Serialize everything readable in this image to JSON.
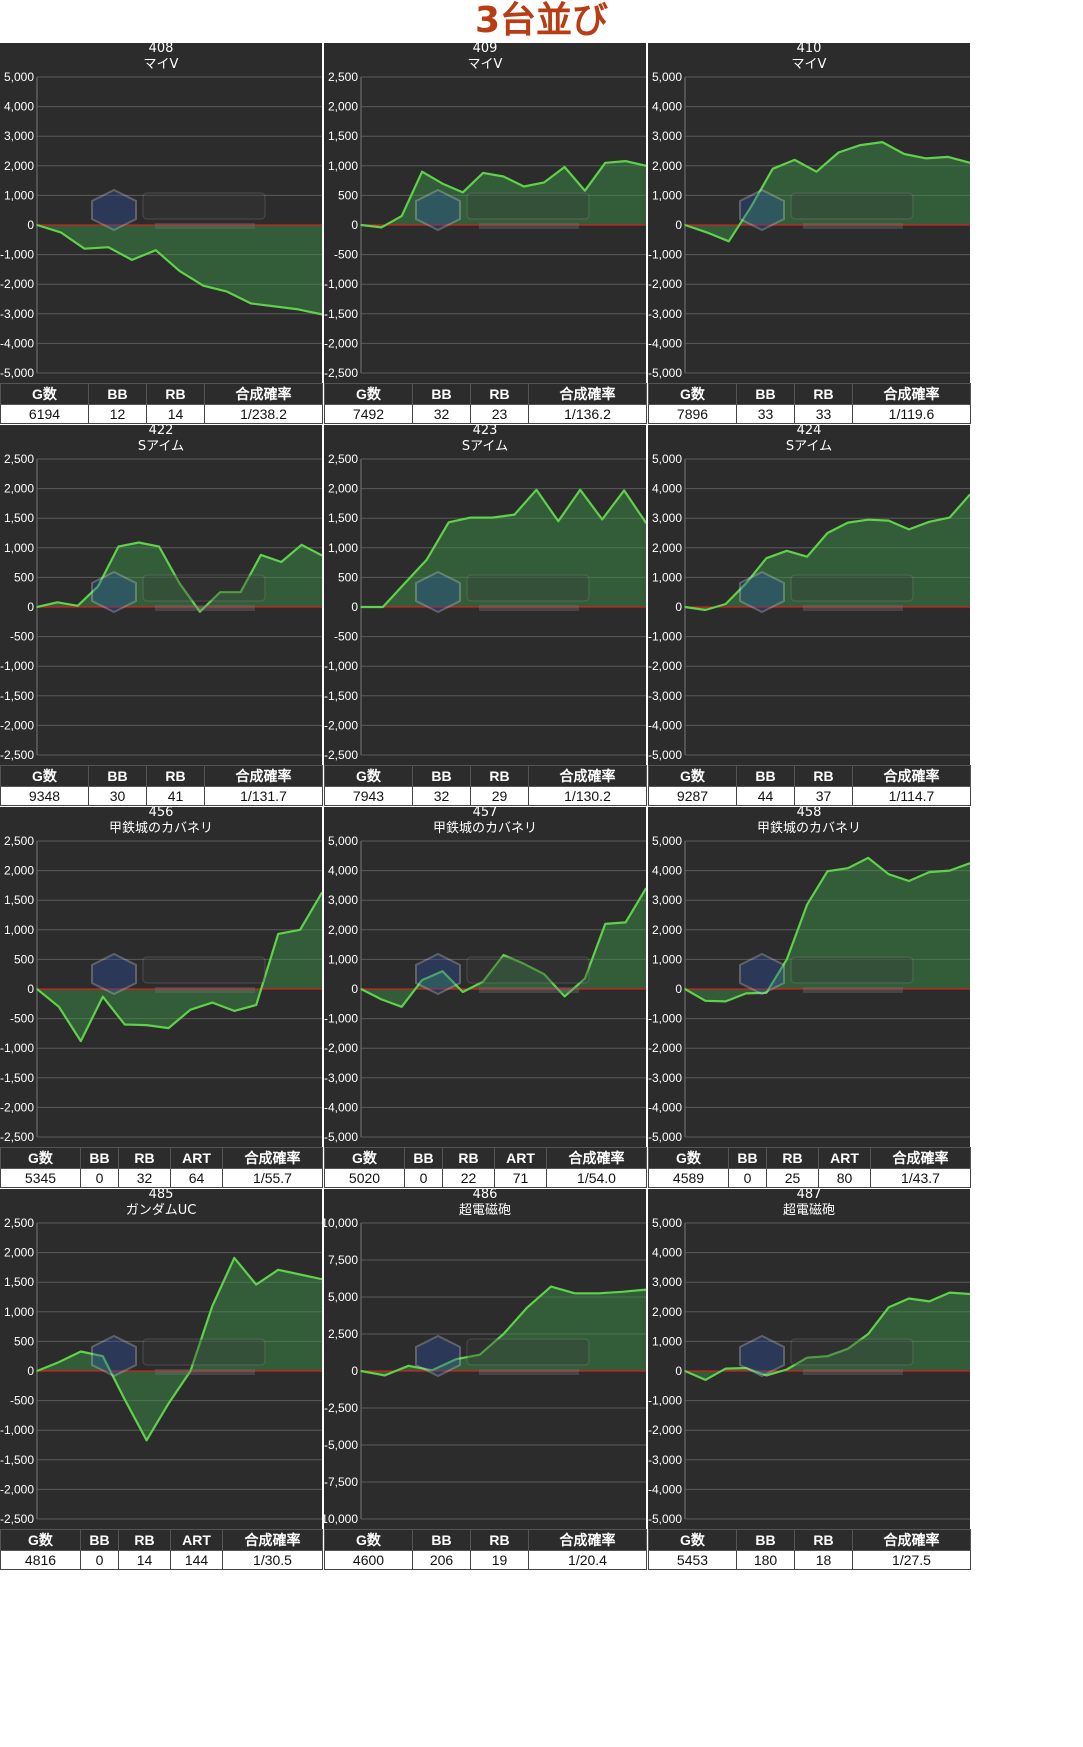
{
  "page": {
    "title": "3台並び"
  },
  "chart_data": [
    {
      "type": "line",
      "machine_no": "408",
      "model": "マイV",
      "ylim": [
        -5000,
        5000
      ],
      "yticks": [
        5000,
        4000,
        3000,
        2000,
        1000,
        0,
        -1000,
        -2000,
        -3000,
        -4000,
        -5000
      ],
      "ytick_labels": [
        "5,000",
        "4,000",
        "3,000",
        "2,000",
        "1,000",
        "0",
        "-1,000",
        "-2,000",
        "-3,000",
        "-4,000",
        "-5,000"
      ],
      "values": [
        0,
        -250,
        -800,
        -750,
        -1180,
        -850,
        -1550,
        -2050,
        -2250,
        -2650,
        -2750,
        -2850,
        -3020
      ],
      "stats": {
        "headers": [
          "G数",
          "BB",
          "RB",
          "合成確率"
        ],
        "values": [
          "6194",
          "12",
          "14",
          "1/238.2"
        ]
      }
    },
    {
      "type": "line",
      "machine_no": "409",
      "model": "マイV",
      "ylim": [
        -2500,
        2500
      ],
      "yticks": [
        2500,
        2000,
        1500,
        1000,
        500,
        0,
        -500,
        -1000,
        -1500,
        -2000,
        -2500
      ],
      "ytick_labels": [
        "2,500",
        "2,000",
        "1,500",
        "1,000",
        "500",
        "0",
        "-500",
        "-1,000",
        "-1,500",
        "-2,000",
        "-2,500"
      ],
      "values": [
        0,
        -40,
        150,
        900,
        700,
        550,
        880,
        820,
        650,
        720,
        980,
        580,
        1050,
        1080,
        1000
      ],
      "stats": {
        "headers": [
          "G数",
          "BB",
          "RB",
          "合成確率"
        ],
        "values": [
          "7492",
          "32",
          "23",
          "1/136.2"
        ]
      }
    },
    {
      "type": "line",
      "machine_no": "410",
      "model": "マイV",
      "ylim": [
        -5000,
        5000
      ],
      "yticks": [
        5000,
        4000,
        3000,
        2000,
        1000,
        0,
        -1000,
        -2000,
        -3000,
        -4000,
        -5000
      ],
      "ytick_labels": [
        "5,000",
        "4,000",
        "3,000",
        "2,000",
        "1,000",
        "0",
        "-1,000",
        "-2,000",
        "-3,000",
        "-4,000",
        "-5,000"
      ],
      "values": [
        0,
        -250,
        -550,
        600,
        1900,
        2200,
        1800,
        2450,
        2700,
        2800,
        2400,
        2250,
        2300,
        2100
      ],
      "stats": {
        "headers": [
          "G数",
          "BB",
          "RB",
          "合成確率"
        ],
        "values": [
          "7896",
          "33",
          "33",
          "1/119.6"
        ]
      }
    },
    {
      "type": "line",
      "machine_no": "422",
      "model": "Sアイム",
      "ylim": [
        -2500,
        2500
      ],
      "yticks": [
        2500,
        2000,
        1500,
        1000,
        500,
        0,
        -500,
        -1000,
        -1500,
        -2000,
        -2500
      ],
      "ytick_labels": [
        "2,500",
        "2,000",
        "1,500",
        "1,000",
        "500",
        "0",
        "-500",
        "-1,000",
        "-1,500",
        "-2,000",
        "-2,500"
      ],
      "values": [
        0,
        80,
        20,
        350,
        1020,
        1090,
        1020,
        400,
        -80,
        250,
        250,
        880,
        760,
        1050,
        870
      ],
      "stats": {
        "headers": [
          "G数",
          "BB",
          "RB",
          "合成確率"
        ],
        "values": [
          "9348",
          "30",
          "41",
          "1/131.7"
        ]
      }
    },
    {
      "type": "line",
      "machine_no": "423",
      "model": "Sアイム",
      "ylim": [
        -2500,
        2500
      ],
      "yticks": [
        2500,
        2000,
        1500,
        1000,
        500,
        0,
        -500,
        -1000,
        -1500,
        -2000,
        -2500
      ],
      "ytick_labels": [
        "2,500",
        "2,000",
        "1,500",
        "1,000",
        "500",
        "0",
        "-500",
        "-1,000",
        "-1,500",
        "-2,000",
        "-2,500"
      ],
      "values": [
        0,
        0,
        400,
        800,
        1430,
        1510,
        1510,
        1560,
        1980,
        1450,
        1980,
        1480,
        1970,
        1420
      ],
      "stats": {
        "headers": [
          "G数",
          "BB",
          "RB",
          "合成確率"
        ],
        "values": [
          "7943",
          "32",
          "29",
          "1/130.2"
        ]
      }
    },
    {
      "type": "line",
      "machine_no": "424",
      "model": "Sアイム",
      "ylim": [
        -5000,
        5000
      ],
      "yticks": [
        5000,
        4000,
        3000,
        2000,
        1000,
        0,
        -1000,
        -2000,
        -3000,
        -4000,
        -5000
      ],
      "ytick_labels": [
        "5,000",
        "4,000",
        "3,000",
        "2,000",
        "1,000",
        "0",
        "-1,000",
        "-2,000",
        "-3,000",
        "-4,000",
        "-5,000"
      ],
      "values": [
        0,
        -100,
        100,
        800,
        1650,
        1900,
        1700,
        2500,
        2850,
        2950,
        2920,
        2620,
        2880,
        3020,
        3800
      ],
      "stats": {
        "headers": [
          "G数",
          "BB",
          "RB",
          "合成確率"
        ],
        "values": [
          "9287",
          "44",
          "37",
          "1/114.7"
        ]
      }
    },
    {
      "type": "line",
      "machine_no": "456",
      "model": "甲鉄城のカバネリ",
      "ylim": [
        -2500,
        2500
      ],
      "yticks": [
        2500,
        2000,
        1500,
        1000,
        500,
        0,
        -500,
        -1000,
        -1500,
        -2000,
        -2500
      ],
      "ytick_labels": [
        "2,500",
        "2,000",
        "1,500",
        "1,000",
        "500",
        "0",
        "-500",
        "-1,000",
        "-1,500",
        "-2,000",
        "-2,500"
      ],
      "values": [
        0,
        -300,
        -880,
        -130,
        -600,
        -610,
        -660,
        -350,
        -230,
        -370,
        -270,
        930,
        1000,
        1630
      ],
      "stats": {
        "headers": [
          "G数",
          "BB",
          "RB",
          "ART",
          "合成確率"
        ],
        "values": [
          "5345",
          "0",
          "32",
          "64",
          "1/55.7"
        ]
      }
    },
    {
      "type": "line",
      "machine_no": "457",
      "model": "甲鉄城のカバネリ",
      "ylim": [
        -5000,
        5000
      ],
      "yticks": [
        5000,
        4000,
        3000,
        2000,
        1000,
        0,
        -1000,
        -2000,
        -3000,
        -4000,
        -5000
      ],
      "ytick_labels": [
        "5,000",
        "4,000",
        "3,000",
        "2,000",
        "1,000",
        "0",
        "-1,000",
        "-2,000",
        "-3,000",
        "-4,000",
        "-5,000"
      ],
      "values": [
        0,
        -350,
        -600,
        300,
        600,
        -100,
        250,
        1150,
        850,
        500,
        -250,
        350,
        2200,
        2250,
        3400
      ],
      "stats": {
        "headers": [
          "G数",
          "BB",
          "RB",
          "ART",
          "合成確率"
        ],
        "values": [
          "5020",
          "0",
          "22",
          "71",
          "1/54.0"
        ]
      }
    },
    {
      "type": "line",
      "machine_no": "458",
      "model": "甲鉄城のカバネリ",
      "ylim": [
        -5000,
        5000
      ],
      "yticks": [
        5000,
        4000,
        3000,
        2000,
        1000,
        0,
        -1000,
        -2000,
        -3000,
        -4000,
        -5000
      ],
      "ytick_labels": [
        "5,000",
        "4,000",
        "3,000",
        "2,000",
        "1,000",
        "0",
        "-1,000",
        "-2,000",
        "-3,000",
        "-4,000",
        "-5,000"
      ],
      "values": [
        0,
        -400,
        -420,
        -150,
        -130,
        1000,
        2850,
        3980,
        4080,
        4430,
        3880,
        3650,
        3950,
        4000,
        4250
      ],
      "stats": {
        "headers": [
          "G数",
          "BB",
          "RB",
          "ART",
          "合成確率"
        ],
        "values": [
          "4589",
          "0",
          "25",
          "80",
          "1/43.7"
        ]
      }
    },
    {
      "type": "line",
      "machine_no": "485",
      "model": "ガンダムUC",
      "ylim": [
        -2500,
        2500
      ],
      "yticks": [
        2500,
        2000,
        1500,
        1000,
        500,
        0,
        -500,
        -1000,
        -1500,
        -2000,
        -2500
      ],
      "ytick_labels": [
        "2,500",
        "2,000",
        "1,500",
        "1,000",
        "500",
        "0",
        "-500",
        "-1,000",
        "-1,500",
        "-2,000",
        "-2,500"
      ],
      "values": [
        0,
        150,
        330,
        250,
        -480,
        -1170,
        -550,
        0,
        1100,
        1910,
        1460,
        1710,
        1630,
        1550
      ],
      "stats": {
        "headers": [
          "G数",
          "BB",
          "RB",
          "ART",
          "合成確率"
        ],
        "values": [
          "4816",
          "0",
          "14",
          "144",
          "1/30.5"
        ]
      }
    },
    {
      "type": "line",
      "machine_no": "486",
      "model": "超電磁砲",
      "ylim": [
        -10000,
        10000
      ],
      "yticks": [
        10000,
        7500,
        5000,
        2500,
        0,
        -2500,
        -5000,
        -7500,
        -10000
      ],
      "ytick_labels": [
        "10,000",
        "7,500",
        "5,000",
        "2,500",
        "0",
        "-2,500",
        "-5,000",
        "-7,500",
        "-10,000"
      ],
      "values": [
        0,
        -300,
        350,
        50,
        800,
        1100,
        2500,
        4300,
        5700,
        5250,
        5250,
        5350,
        5500
      ],
      "stats": {
        "headers": [
          "G数",
          "BB",
          "RB",
          "合成確率"
        ],
        "values": [
          "4600",
          "206",
          "19",
          "1/20.4"
        ]
      }
    },
    {
      "type": "line",
      "machine_no": "487",
      "model": "超電磁砲",
      "ylim": [
        -5000,
        5000
      ],
      "yticks": [
        5000,
        4000,
        3000,
        2000,
        1000,
        0,
        -1000,
        -2000,
        -3000,
        -4000,
        -5000
      ],
      "ytick_labels": [
        "5,000",
        "4,000",
        "3,000",
        "2,000",
        "1,000",
        "0",
        "-1,000",
        "-2,000",
        "-3,000",
        "-4,000",
        "-5,000"
      ],
      "values": [
        0,
        -300,
        80,
        100,
        -150,
        50,
        450,
        500,
        750,
        1250,
        2150,
        2450,
        2350,
        2650,
        2600
      ],
      "stats": {
        "headers": [
          "G数",
          "BB",
          "RB",
          "合成確率"
        ],
        "values": [
          "5453",
          "180",
          "18",
          "1/27.5"
        ]
      }
    }
  ]
}
